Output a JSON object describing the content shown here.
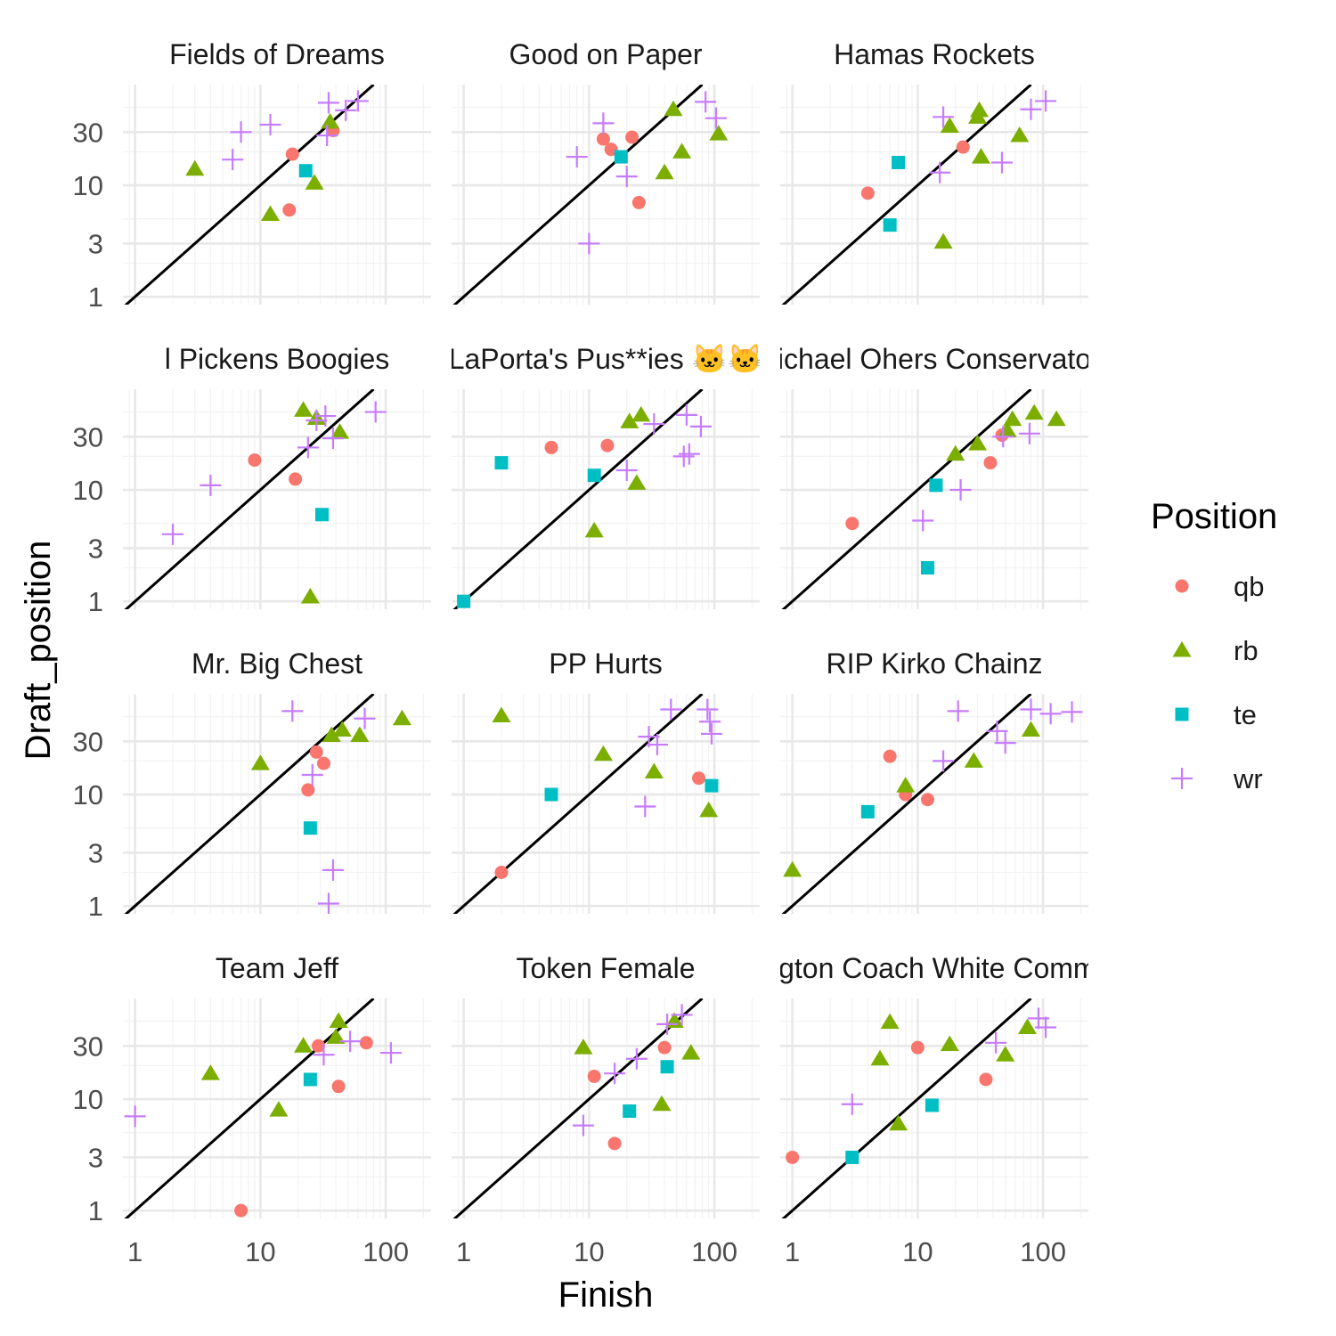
{
  "chart_data": {
    "type": "scatter",
    "xlabel": "Finish",
    "ylabel": "Draft_position",
    "x_scale": "log10",
    "y_scale": "log10",
    "xlim": [
      0.8,
      230
    ],
    "ylim": [
      0.85,
      80
    ],
    "x_ticks": [
      1,
      10,
      100
    ],
    "x_tick_labels": [
      "1",
      "10",
      "100"
    ],
    "y_ticks": [
      1,
      3,
      10,
      30
    ],
    "y_tick_labels": [
      "1",
      "3",
      "10",
      "30"
    ],
    "reference_line": "y = x",
    "grid": true,
    "legend": {
      "title": "Position",
      "placement": "right",
      "entries": [
        {
          "label": "qb",
          "color": "#F8766D",
          "shape": "circle"
        },
        {
          "label": "rb",
          "color": "#7CAE00",
          "shape": "triangle"
        },
        {
          "label": "te",
          "color": "#00BFC4",
          "shape": "square"
        },
        {
          "label": "wr",
          "color": "#C77CFF",
          "shape": "plus"
        }
      ]
    },
    "panels": [
      {
        "title": "Fields of Dreams",
        "points": [
          {
            "pos": "qb",
            "x": 18,
            "y": 19
          },
          {
            "pos": "qb",
            "x": 17,
            "y": 6
          },
          {
            "pos": "qb",
            "x": 38,
            "y": 31
          },
          {
            "pos": "rb",
            "x": 3,
            "y": 14
          },
          {
            "pos": "rb",
            "x": 12,
            "y": 5.5
          },
          {
            "pos": "rb",
            "x": 27,
            "y": 10.5
          },
          {
            "pos": "rb",
            "x": 36,
            "y": 37
          },
          {
            "pos": "te",
            "x": 23,
            "y": 13.5
          },
          {
            "pos": "wr",
            "x": 6,
            "y": 17
          },
          {
            "pos": "wr",
            "x": 7,
            "y": 30
          },
          {
            "pos": "wr",
            "x": 12,
            "y": 35
          },
          {
            "pos": "wr",
            "x": 34,
            "y": 28
          },
          {
            "pos": "wr",
            "x": 35,
            "y": 55
          },
          {
            "pos": "wr",
            "x": 48,
            "y": 47
          },
          {
            "pos": "wr",
            "x": 60,
            "y": 57
          }
        ]
      },
      {
        "title": "Good on Paper",
        "points": [
          {
            "pos": "qb",
            "x": 13,
            "y": 26
          },
          {
            "pos": "qb",
            "x": 15,
            "y": 21
          },
          {
            "pos": "qb",
            "x": 22,
            "y": 27
          },
          {
            "pos": "qb",
            "x": 25,
            "y": 7
          },
          {
            "pos": "rb",
            "x": 47,
            "y": 48
          },
          {
            "pos": "rb",
            "x": 55,
            "y": 20
          },
          {
            "pos": "rb",
            "x": 40,
            "y": 13
          },
          {
            "pos": "rb",
            "x": 108,
            "y": 29
          },
          {
            "pos": "te",
            "x": 18,
            "y": 18
          },
          {
            "pos": "wr",
            "x": 8,
            "y": 18
          },
          {
            "pos": "wr",
            "x": 13,
            "y": 36
          },
          {
            "pos": "wr",
            "x": 20,
            "y": 12
          },
          {
            "pos": "wr",
            "x": 10,
            "y": 3
          },
          {
            "pos": "wr",
            "x": 85,
            "y": 56
          },
          {
            "pos": "wr",
            "x": 103,
            "y": 40
          }
        ]
      },
      {
        "title": "Hamas Rockets",
        "points": [
          {
            "pos": "qb",
            "x": 4,
            "y": 8.5
          },
          {
            "pos": "qb",
            "x": 23,
            "y": 22
          },
          {
            "pos": "rb",
            "x": 16,
            "y": 3.1
          },
          {
            "pos": "rb",
            "x": 18,
            "y": 34
          },
          {
            "pos": "rb",
            "x": 30,
            "y": 41
          },
          {
            "pos": "rb",
            "x": 31,
            "y": 47
          },
          {
            "pos": "rb",
            "x": 32,
            "y": 18
          },
          {
            "pos": "rb",
            "x": 65,
            "y": 28
          },
          {
            "pos": "te",
            "x": 6,
            "y": 4.4
          },
          {
            "pos": "te",
            "x": 7,
            "y": 16
          },
          {
            "pos": "wr",
            "x": 15,
            "y": 13
          },
          {
            "pos": "wr",
            "x": 16,
            "y": 41
          },
          {
            "pos": "wr",
            "x": 47,
            "y": 16
          },
          {
            "pos": "wr",
            "x": 80,
            "y": 48
          },
          {
            "pos": "wr",
            "x": 105,
            "y": 57
          }
        ]
      },
      {
        "title": "l Pickens Boogies",
        "points": [
          {
            "pos": "qb",
            "x": 9,
            "y": 18.5
          },
          {
            "pos": "qb",
            "x": 19,
            "y": 12.5
          },
          {
            "pos": "rb",
            "x": 22,
            "y": 52
          },
          {
            "pos": "rb",
            "x": 25,
            "y": 1.1
          },
          {
            "pos": "rb",
            "x": 28,
            "y": 44
          },
          {
            "pos": "rb",
            "x": 43,
            "y": 33
          },
          {
            "pos": "te",
            "x": 31,
            "y": 6
          },
          {
            "pos": "wr",
            "x": 2,
            "y": 4
          },
          {
            "pos": "wr",
            "x": 4,
            "y": 11
          },
          {
            "pos": "wr",
            "x": 24,
            "y": 24
          },
          {
            "pos": "wr",
            "x": 28,
            "y": 42
          },
          {
            "pos": "wr",
            "x": 33,
            "y": 46
          },
          {
            "pos": "wr",
            "x": 38,
            "y": 29
          },
          {
            "pos": "wr",
            "x": 83,
            "y": 50
          }
        ]
      },
      {
        "title": "LaPorta's Pus**ies 🐱🐱",
        "points": [
          {
            "pos": "qb",
            "x": 5,
            "y": 24
          },
          {
            "pos": "qb",
            "x": 14,
            "y": 25
          },
          {
            "pos": "rb",
            "x": 11,
            "y": 4.3
          },
          {
            "pos": "rb",
            "x": 21,
            "y": 41
          },
          {
            "pos": "rb",
            "x": 24,
            "y": 11.5
          },
          {
            "pos": "rb",
            "x": 26,
            "y": 47
          },
          {
            "pos": "te",
            "x": 2,
            "y": 17.5
          },
          {
            "pos": "te",
            "x": 11,
            "y": 13.5
          },
          {
            "pos": "te",
            "x": 1,
            "y": 1
          },
          {
            "pos": "wr",
            "x": 20,
            "y": 15
          },
          {
            "pos": "wr",
            "x": 33,
            "y": 39
          },
          {
            "pos": "wr",
            "x": 57,
            "y": 20
          },
          {
            "pos": "wr",
            "x": 63,
            "y": 21
          },
          {
            "pos": "wr",
            "x": 60,
            "y": 47
          },
          {
            "pos": "wr",
            "x": 78,
            "y": 37
          }
        ]
      },
      {
        "title": "Michael Ohers Conservatory",
        "points": [
          {
            "pos": "qb",
            "x": 3,
            "y": 5
          },
          {
            "pos": "qb",
            "x": 38,
            "y": 17.5
          },
          {
            "pos": "qb",
            "x": 47,
            "y": 31
          },
          {
            "pos": "rb",
            "x": 20,
            "y": 21
          },
          {
            "pos": "rb",
            "x": 30,
            "y": 26
          },
          {
            "pos": "rb",
            "x": 52,
            "y": 34
          },
          {
            "pos": "rb",
            "x": 57,
            "y": 43
          },
          {
            "pos": "rb",
            "x": 85,
            "y": 49
          },
          {
            "pos": "rb",
            "x": 128,
            "y": 43
          },
          {
            "pos": "te",
            "x": 12,
            "y": 2
          },
          {
            "pos": "te",
            "x": 14,
            "y": 11
          },
          {
            "pos": "wr",
            "x": 11,
            "y": 5.3
          },
          {
            "pos": "wr",
            "x": 22,
            "y": 10
          },
          {
            "pos": "wr",
            "x": 48,
            "y": 30
          },
          {
            "pos": "wr",
            "x": 78,
            "y": 32
          }
        ]
      },
      {
        "title": "Mr. Big Chest",
        "points": [
          {
            "pos": "qb",
            "x": 24,
            "y": 11
          },
          {
            "pos": "qb",
            "x": 28,
            "y": 24
          },
          {
            "pos": "qb",
            "x": 32,
            "y": 19
          },
          {
            "pos": "rb",
            "x": 10,
            "y": 19
          },
          {
            "pos": "rb",
            "x": 37,
            "y": 34
          },
          {
            "pos": "rb",
            "x": 45,
            "y": 38
          },
          {
            "pos": "rb",
            "x": 62,
            "y": 34
          },
          {
            "pos": "rb",
            "x": 135,
            "y": 48
          },
          {
            "pos": "te",
            "x": 25,
            "y": 5
          },
          {
            "pos": "wr",
            "x": 18,
            "y": 56
          },
          {
            "pos": "wr",
            "x": 26,
            "y": 15
          },
          {
            "pos": "wr",
            "x": 38,
            "y": 2.1
          },
          {
            "pos": "wr",
            "x": 35,
            "y": 1.05
          },
          {
            "pos": "wr",
            "x": 68,
            "y": 48
          }
        ]
      },
      {
        "title": "PP Hurts",
        "points": [
          {
            "pos": "qb",
            "x": 2,
            "y": 2
          },
          {
            "pos": "qb",
            "x": 75,
            "y": 14
          },
          {
            "pos": "rb",
            "x": 2,
            "y": 51
          },
          {
            "pos": "rb",
            "x": 13,
            "y": 23
          },
          {
            "pos": "rb",
            "x": 33,
            "y": 16
          },
          {
            "pos": "rb",
            "x": 90,
            "y": 7.2
          },
          {
            "pos": "te",
            "x": 5,
            "y": 10
          },
          {
            "pos": "te",
            "x": 95,
            "y": 12
          },
          {
            "pos": "wr",
            "x": 28,
            "y": 7.8
          },
          {
            "pos": "wr",
            "x": 30,
            "y": 33
          },
          {
            "pos": "wr",
            "x": 35,
            "y": 28
          },
          {
            "pos": "wr",
            "x": 45,
            "y": 58
          },
          {
            "pos": "wr",
            "x": 88,
            "y": 58
          },
          {
            "pos": "wr",
            "x": 92,
            "y": 45
          },
          {
            "pos": "wr",
            "x": 95,
            "y": 35
          }
        ]
      },
      {
        "title": "RIP Kirko Chainz",
        "points": [
          {
            "pos": "qb",
            "x": 6,
            "y": 22
          },
          {
            "pos": "qb",
            "x": 8,
            "y": 10
          },
          {
            "pos": "qb",
            "x": 12,
            "y": 9
          },
          {
            "pos": "rb",
            "x": 1,
            "y": 2.1
          },
          {
            "pos": "rb",
            "x": 8,
            "y": 12
          },
          {
            "pos": "rb",
            "x": 28,
            "y": 20
          },
          {
            "pos": "rb",
            "x": 80,
            "y": 38
          },
          {
            "pos": "te",
            "x": 4,
            "y": 7
          },
          {
            "pos": "wr",
            "x": 16,
            "y": 20
          },
          {
            "pos": "wr",
            "x": 21,
            "y": 56
          },
          {
            "pos": "wr",
            "x": 43,
            "y": 37
          },
          {
            "pos": "wr",
            "x": 50,
            "y": 29
          },
          {
            "pos": "wr",
            "x": 80,
            "y": 58
          },
          {
            "pos": "wr",
            "x": 115,
            "y": 53
          },
          {
            "pos": "wr",
            "x": 170,
            "y": 55
          }
        ]
      },
      {
        "title": "Team Jeff",
        "points": [
          {
            "pos": "qb",
            "x": 7,
            "y": 1
          },
          {
            "pos": "qb",
            "x": 29,
            "y": 30
          },
          {
            "pos": "qb",
            "x": 42,
            "y": 13
          },
          {
            "pos": "qb",
            "x": 70,
            "y": 32
          },
          {
            "pos": "rb",
            "x": 4,
            "y": 17
          },
          {
            "pos": "rb",
            "x": 14,
            "y": 8
          },
          {
            "pos": "rb",
            "x": 22,
            "y": 30
          },
          {
            "pos": "rb",
            "x": 40,
            "y": 36
          },
          {
            "pos": "rb",
            "x": 42,
            "y": 50
          },
          {
            "pos": "te",
            "x": 25,
            "y": 15
          },
          {
            "pos": "wr",
            "x": 1,
            "y": 7
          },
          {
            "pos": "wr",
            "x": 32,
            "y": 25
          },
          {
            "pos": "wr",
            "x": 52,
            "y": 33
          },
          {
            "pos": "wr",
            "x": 110,
            "y": 26
          }
        ]
      },
      {
        "title": "Token Female",
        "points": [
          {
            "pos": "qb",
            "x": 11,
            "y": 16
          },
          {
            "pos": "qb",
            "x": 16,
            "y": 4
          },
          {
            "pos": "qb",
            "x": 40,
            "y": 29
          },
          {
            "pos": "rb",
            "x": 9,
            "y": 29
          },
          {
            "pos": "rb",
            "x": 38,
            "y": 9
          },
          {
            "pos": "rb",
            "x": 48,
            "y": 50
          },
          {
            "pos": "rb",
            "x": 65,
            "y": 26
          },
          {
            "pos": "te",
            "x": 21,
            "y": 7.8
          },
          {
            "pos": "te",
            "x": 42,
            "y": 19.5
          },
          {
            "pos": "wr",
            "x": 9,
            "y": 5.8
          },
          {
            "pos": "wr",
            "x": 16,
            "y": 17
          },
          {
            "pos": "wr",
            "x": 24,
            "y": 23
          },
          {
            "pos": "wr",
            "x": 42,
            "y": 47
          },
          {
            "pos": "wr",
            "x": 55,
            "y": 57
          }
        ]
      },
      {
        "title": "Washington Coach White Commanders",
        "points": [
          {
            "pos": "qb",
            "x": 1,
            "y": 3
          },
          {
            "pos": "qb",
            "x": 10,
            "y": 29
          },
          {
            "pos": "qb",
            "x": 35,
            "y": 15
          },
          {
            "pos": "rb",
            "x": 5,
            "y": 23
          },
          {
            "pos": "rb",
            "x": 6,
            "y": 49
          },
          {
            "pos": "rb",
            "x": 7,
            "y": 6
          },
          {
            "pos": "rb",
            "x": 18,
            "y": 31
          },
          {
            "pos": "rb",
            "x": 50,
            "y": 25
          },
          {
            "pos": "rb",
            "x": 75,
            "y": 44
          },
          {
            "pos": "te",
            "x": 3,
            "y": 3
          },
          {
            "pos": "te",
            "x": 13,
            "y": 8.8
          },
          {
            "pos": "wr",
            "x": 3,
            "y": 9
          },
          {
            "pos": "wr",
            "x": 42,
            "y": 32
          },
          {
            "pos": "wr",
            "x": 92,
            "y": 53
          },
          {
            "pos": "wr",
            "x": 105,
            "y": 44
          }
        ]
      }
    ]
  }
}
